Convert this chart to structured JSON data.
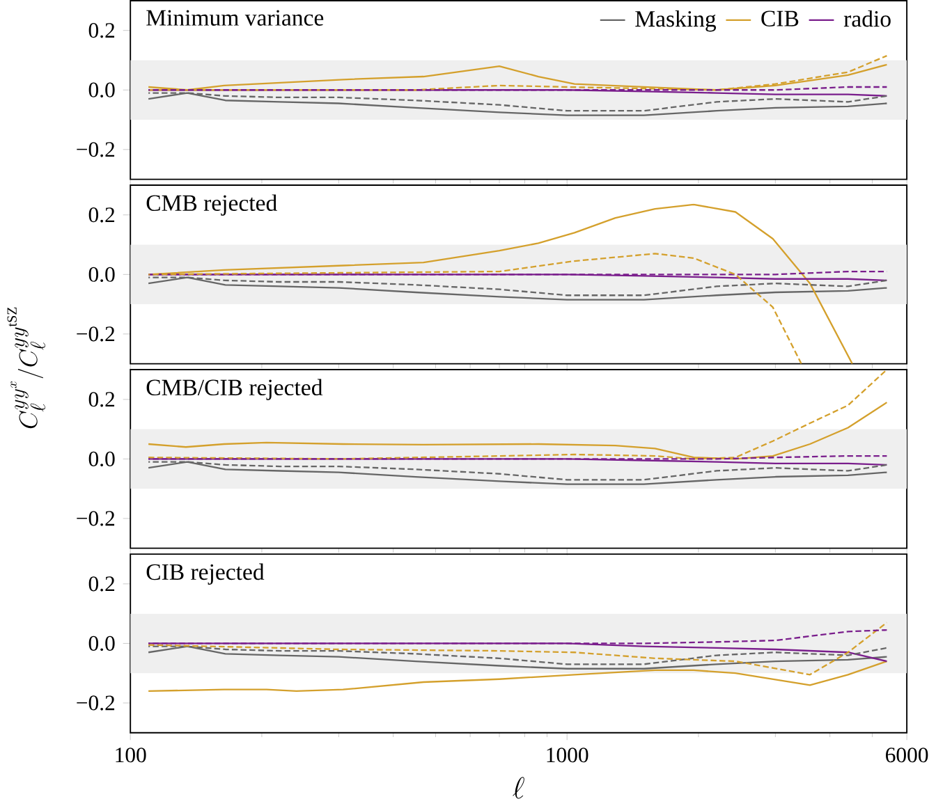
{
  "chart_data": [
    {
      "type": "line",
      "title": "Minimum variance",
      "log": "x",
      "xlim": [
        100,
        6000
      ],
      "xticks": [
        100,
        1000,
        6000
      ],
      "ylim": [
        -0.3,
        0.3
      ],
      "yticks": [
        {
          "value": -0.2,
          "label": "−0.2"
        },
        {
          "value": 0,
          "label": "0.0"
        },
        {
          "value": 0.2,
          "label": "0.2"
        }
      ],
      "tick_labels": "y",
      "legend": "top right",
      "bands": [
        {
          "axis": "y",
          "from": -0.1,
          "to": 0.1,
          "color": "#efefef"
        }
      ],
      "x": [
        110,
        135,
        165,
        220,
        300,
        450,
        700,
        1000,
        1500,
        2200,
        3000,
        4400,
        5400
      ],
      "series": [
        {
          "name": "Masking",
          "color": "#666666",
          "line_style": "solid",
          "values": [
            -0.03,
            -0.01,
            -0.035,
            -0.04,
            -0.045,
            -0.06,
            -0.075,
            -0.085,
            -0.085,
            -0.07,
            -0.06,
            -0.055,
            -0.045
          ]
        },
        {
          "name": "CIB",
          "color": "#d4a02c",
          "line_style": "solid",
          "x": [
            110,
            135,
            164,
            307,
            469,
            700,
            860,
            1040,
            2200,
            3000,
            4400,
            5400
          ],
          "values": [
            0.01,
            0.0,
            0.015,
            0.035,
            0.045,
            0.08,
            0.045,
            0.02,
            0.0,
            0.015,
            0.05,
            0.085
          ]
        },
        {
          "name": "radio",
          "color": "#7a1e8c",
          "line_style": "solid",
          "values": [
            0,
            0,
            0,
            0,
            0,
            0,
            0,
            0,
            -0.005,
            -0.01,
            -0.015,
            -0.015,
            -0.02
          ]
        },
        {
          "color": "#666666",
          "line_style": "dashed",
          "values": [
            -0.01,
            -0.01,
            -0.02,
            -0.025,
            -0.025,
            -0.035,
            -0.05,
            -0.07,
            -0.07,
            -0.04,
            -0.03,
            -0.04,
            -0.02
          ]
        },
        {
          "color": "#d4a02c",
          "line_style": "dashed",
          "values": [
            0,
            0,
            0,
            0,
            0,
            0,
            0.015,
            0.01,
            0.005,
            0,
            0.02,
            0.06,
            0.115
          ]
        },
        {
          "color": "#7a1e8c",
          "line_style": "dashed",
          "values": [
            0,
            0,
            0,
            0,
            0,
            0,
            0,
            0,
            0,
            0,
            0,
            0.01,
            0.01
          ]
        }
      ]
    },
    {
      "type": "line",
      "title": "CMB rejected",
      "ylabel": "C_\\ell^{yy^x} / C_\\ell^{yy^{\\rm tSZ}}",
      "log": "x",
      "xlim": [
        100,
        6000
      ],
      "xticks": [
        100,
        1000,
        6000
      ],
      "ylim": [
        -0.3,
        0.3
      ],
      "yticks": [
        {
          "value": -0.2,
          "label": "−0.2"
        },
        {
          "value": 0,
          "label": "0.0"
        },
        {
          "value": 0.2,
          "label": "0.2"
        }
      ],
      "tick_labels": "y",
      "bands": [
        {
          "axis": "y",
          "from": -0.1,
          "to": 0.1,
          "color": "#efefef"
        }
      ],
      "x": [
        110,
        135,
        165,
        220,
        300,
        450,
        700,
        1000,
        1500,
        2200,
        3000,
        4400,
        5400
      ],
      "series": [
        {
          "color": "#666666",
          "line_style": "solid",
          "values": [
            -0.03,
            -0.01,
            -0.035,
            -0.04,
            -0.045,
            -0.06,
            -0.075,
            -0.085,
            -0.085,
            -0.07,
            -0.06,
            -0.055,
            -0.045
          ]
        },
        {
          "color": "#d4a02c",
          "line_style": "solid",
          "x": [
            110,
            164,
            307,
            469,
            700,
            860,
            1040,
            1290,
            1590,
            1950,
            2430,
            2960,
            3600,
            4500
          ],
          "values": [
            0,
            0.015,
            0.03,
            0.04,
            0.08,
            0.105,
            0.14,
            0.19,
            0.22,
            0.235,
            0.21,
            0.12,
            -0.03,
            -0.3
          ]
        },
        {
          "color": "#7a1e8c",
          "line_style": "solid",
          "values": [
            0,
            0,
            0,
            0,
            0,
            0,
            0,
            0,
            -0.005,
            -0.01,
            -0.015,
            -0.015,
            -0.02
          ]
        },
        {
          "color": "#666666",
          "line_style": "dashed",
          "values": [
            -0.01,
            -0.01,
            -0.02,
            -0.025,
            -0.025,
            -0.035,
            -0.05,
            -0.07,
            -0.07,
            -0.04,
            -0.03,
            -0.04,
            -0.02
          ]
        },
        {
          "color": "#7a1e8c",
          "line_style": "dashed",
          "values": [
            0,
            0,
            0,
            0,
            0,
            0,
            0,
            0,
            0,
            0,
            0,
            0.01,
            0.01
          ]
        },
        {
          "color": "#d4a02c",
          "line_style": "dashed",
          "x": [
            110,
            700,
            1040,
            1590,
            1950,
            2430,
            2960,
            3440
          ],
          "values": [
            0,
            0.01,
            0.045,
            0.07,
            0.055,
            0,
            -0.11,
            -0.3
          ]
        }
      ]
    },
    {
      "type": "line",
      "title": "CMB/CIB rejected",
      "log": "x",
      "xlim": [
        100,
        6000
      ],
      "xticks": [
        100,
        1000,
        6000
      ],
      "ylim": [
        -0.3,
        0.3
      ],
      "yticks": [
        {
          "value": -0.2,
          "label": "−0.2"
        },
        {
          "value": 0,
          "label": "0.0"
        },
        {
          "value": 0.2,
          "label": "0.2"
        }
      ],
      "tick_labels": "y",
      "bands": [
        {
          "axis": "y",
          "from": -0.1,
          "to": 0.1,
          "color": "#efefef"
        }
      ],
      "x": [
        110,
        135,
        165,
        220,
        300,
        450,
        700,
        1000,
        1500,
        2200,
        3000,
        4400,
        5400
      ],
      "series": [
        {
          "color": "#666666",
          "line_style": "solid",
          "values": [
            -0.03,
            -0.01,
            -0.035,
            -0.04,
            -0.045,
            -0.06,
            -0.075,
            -0.085,
            -0.085,
            -0.07,
            -0.06,
            -0.055,
            -0.045
          ]
        },
        {
          "color": "#d4a02c",
          "line_style": "solid",
          "x": [
            110,
            134,
            164,
            205,
            307,
            469,
            860,
            1290,
            1590,
            1950,
            2430,
            2960,
            3600,
            4400,
            5400
          ],
          "values": [
            0.05,
            0.04,
            0.05,
            0.055,
            0.05,
            0.048,
            0.05,
            0.045,
            0.035,
            0.005,
            0,
            0.01,
            0.05,
            0.105,
            0.19
          ]
        },
        {
          "color": "#7a1e8c",
          "line_style": "solid",
          "values": [
            0,
            0,
            0,
            0,
            0,
            0,
            0,
            0,
            -0.005,
            -0.01,
            -0.015,
            -0.015,
            -0.02
          ]
        },
        {
          "color": "#666666",
          "line_style": "dashed",
          "values": [
            -0.01,
            -0.01,
            -0.02,
            -0.025,
            -0.025,
            -0.035,
            -0.05,
            -0.07,
            -0.07,
            -0.04,
            -0.03,
            -0.04,
            -0.02
          ]
        },
        {
          "color": "#d4a02c",
          "line_style": "dashed",
          "x": [
            110,
            300,
            700,
            1040,
            1590,
            1950,
            2430,
            2960,
            3600,
            4400,
            5400
          ],
          "values": [
            0.005,
            0,
            0.01,
            0.015,
            0.01,
            0,
            0.005,
            0.06,
            0.12,
            0.18,
            0.3
          ]
        },
        {
          "color": "#7a1e8c",
          "line_style": "dashed",
          "values": [
            0,
            0,
            0,
            0,
            0,
            0,
            0,
            0,
            0,
            0,
            0.005,
            0.01,
            0.01
          ]
        }
      ]
    },
    {
      "type": "line",
      "title": "CIB rejected",
      "xlabel": "\\ell",
      "log": "x",
      "xlim": [
        100,
        6000
      ],
      "xticks": [
        100,
        1000,
        6000
      ],
      "ylim": [
        -0.3,
        0.3
      ],
      "yticks": [
        {
          "value": -0.2,
          "label": "−0.2"
        },
        {
          "value": 0,
          "label": "0.0"
        },
        {
          "value": 0.2,
          "label": "0.2"
        }
      ],
      "bands": [
        {
          "axis": "y",
          "from": -0.1,
          "to": 0.1,
          "color": "#efefef"
        }
      ],
      "x": [
        110,
        135,
        165,
        220,
        300,
        450,
        700,
        1000,
        1500,
        2200,
        3000,
        4400,
        5400
      ],
      "series": [
        {
          "color": "#666666",
          "line_style": "solid",
          "values": [
            -0.03,
            -0.01,
            -0.035,
            -0.04,
            -0.045,
            -0.06,
            -0.075,
            -0.085,
            -0.085,
            -0.07,
            -0.06,
            -0.055,
            -0.045
          ]
        },
        {
          "color": "#d4a02c",
          "line_style": "solid",
          "x": [
            110,
            164,
            205,
            240,
            307,
            469,
            700,
            1040,
            1590,
            1950,
            2430,
            3600,
            4400,
            5400
          ],
          "values": [
            -0.16,
            -0.155,
            -0.155,
            -0.16,
            -0.155,
            -0.13,
            -0.12,
            -0.105,
            -0.09,
            -0.09,
            -0.1,
            -0.14,
            -0.105,
            -0.06
          ]
        },
        {
          "color": "#7a1e8c",
          "line_style": "solid",
          "values": [
            0,
            0,
            0,
            0,
            0,
            0,
            0,
            0,
            -0.01,
            -0.015,
            -0.02,
            -0.03,
            -0.06
          ]
        },
        {
          "color": "#666666",
          "line_style": "dashed",
          "values": [
            -0.01,
            -0.01,
            -0.02,
            -0.025,
            -0.025,
            -0.035,
            -0.05,
            -0.07,
            -0.07,
            -0.04,
            -0.03,
            -0.04,
            -0.015
          ]
        },
        {
          "color": "#d4a02c",
          "line_style": "dashed",
          "x": [
            110,
            300,
            700,
            1040,
            1590,
            2430,
            3600,
            4400,
            5400
          ],
          "values": [
            -0.005,
            -0.02,
            -0.025,
            -0.03,
            -0.05,
            -0.06,
            -0.105,
            -0.03,
            0.07
          ]
        },
        {
          "color": "#7a1e8c",
          "line_style": "dashed",
          "values": [
            0,
            0,
            0,
            0,
            0,
            0,
            0,
            0,
            0,
            0.005,
            0.01,
            0.04,
            0.045
          ]
        }
      ]
    }
  ]
}
